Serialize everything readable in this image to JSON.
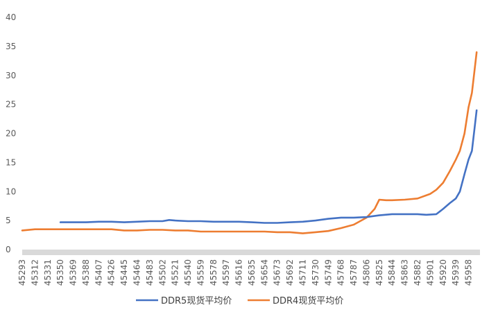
{
  "chart_data": {
    "type": "line",
    "title": "",
    "xlabel": "",
    "ylabel": "",
    "ylim": [
      0,
      40
    ],
    "yticks": [
      0,
      5,
      10,
      15,
      20,
      25,
      30,
      35,
      40
    ],
    "xlim": [
      45293,
      45975
    ],
    "x_tick_labels": [
      "45293",
      "45312",
      "45331",
      "45350",
      "45369",
      "45388",
      "45407",
      "45426",
      "45445",
      "45464",
      "45483",
      "45502",
      "45521",
      "45540",
      "45559",
      "45578",
      "45597",
      "45616",
      "45635",
      "45654",
      "45673",
      "45692",
      "45711",
      "45730",
      "45749",
      "45768",
      "45787",
      "45806",
      "45825",
      "45844",
      "45863",
      "45882",
      "45901",
      "45920",
      "45939",
      "45958"
    ],
    "grid": false,
    "legend_position": "bottom",
    "series": [
      {
        "name": "DDR5现货平均价",
        "color": "#4472C4",
        "points": [
          [
            45350,
            4.7
          ],
          [
            45369,
            4.7
          ],
          [
            45388,
            4.7
          ],
          [
            45407,
            4.8
          ],
          [
            45426,
            4.8
          ],
          [
            45445,
            4.7
          ],
          [
            45464,
            4.8
          ],
          [
            45483,
            4.9
          ],
          [
            45502,
            4.9
          ],
          [
            45512,
            5.1
          ],
          [
            45521,
            5.0
          ],
          [
            45540,
            4.9
          ],
          [
            45559,
            4.9
          ],
          [
            45578,
            4.8
          ],
          [
            45597,
            4.8
          ],
          [
            45616,
            4.8
          ],
          [
            45635,
            4.7
          ],
          [
            45654,
            4.6
          ],
          [
            45673,
            4.6
          ],
          [
            45692,
            4.7
          ],
          [
            45711,
            4.8
          ],
          [
            45730,
            5.0
          ],
          [
            45749,
            5.3
          ],
          [
            45768,
            5.5
          ],
          [
            45787,
            5.5
          ],
          [
            45806,
            5.6
          ],
          [
            45825,
            5.9
          ],
          [
            45844,
            6.1
          ],
          [
            45863,
            6.1
          ],
          [
            45882,
            6.1
          ],
          [
            45895,
            6.0
          ],
          [
            45910,
            6.1
          ],
          [
            45920,
            7.0
          ],
          [
            45930,
            8.0
          ],
          [
            45939,
            8.8
          ],
          [
            45945,
            10.0
          ],
          [
            45952,
            13.0
          ],
          [
            45958,
            15.5
          ],
          [
            45963,
            17.0
          ],
          [
            45967,
            21.0
          ],
          [
            45970,
            24.0
          ]
        ]
      },
      {
        "name": "DDR4现货平均价",
        "color": "#ED7D31",
        "points": [
          [
            45293,
            3.3
          ],
          [
            45312,
            3.5
          ],
          [
            45331,
            3.5
          ],
          [
            45350,
            3.5
          ],
          [
            45369,
            3.5
          ],
          [
            45388,
            3.5
          ],
          [
            45407,
            3.5
          ],
          [
            45426,
            3.5
          ],
          [
            45445,
            3.3
          ],
          [
            45464,
            3.3
          ],
          [
            45483,
            3.4
          ],
          [
            45502,
            3.4
          ],
          [
            45521,
            3.3
          ],
          [
            45540,
            3.3
          ],
          [
            45559,
            3.1
          ],
          [
            45578,
            3.1
          ],
          [
            45597,
            3.1
          ],
          [
            45616,
            3.1
          ],
          [
            45635,
            3.1
          ],
          [
            45654,
            3.1
          ],
          [
            45673,
            3.0
          ],
          [
            45692,
            3.0
          ],
          [
            45711,
            2.8
          ],
          [
            45730,
            3.0
          ],
          [
            45749,
            3.2
          ],
          [
            45768,
            3.7
          ],
          [
            45787,
            4.3
          ],
          [
            45806,
            5.5
          ],
          [
            45818,
            7.0
          ],
          [
            45825,
            8.6
          ],
          [
            45835,
            8.5
          ],
          [
            45844,
            8.5
          ],
          [
            45863,
            8.6
          ],
          [
            45882,
            8.8
          ],
          [
            45901,
            9.6
          ],
          [
            45910,
            10.3
          ],
          [
            45920,
            11.5
          ],
          [
            45930,
            13.5
          ],
          [
            45939,
            15.5
          ],
          [
            45945,
            17.0
          ],
          [
            45952,
            20.0
          ],
          [
            45958,
            24.5
          ],
          [
            45963,
            27.0
          ],
          [
            45967,
            31.0
          ],
          [
            45970,
            34.0
          ]
        ]
      }
    ]
  }
}
